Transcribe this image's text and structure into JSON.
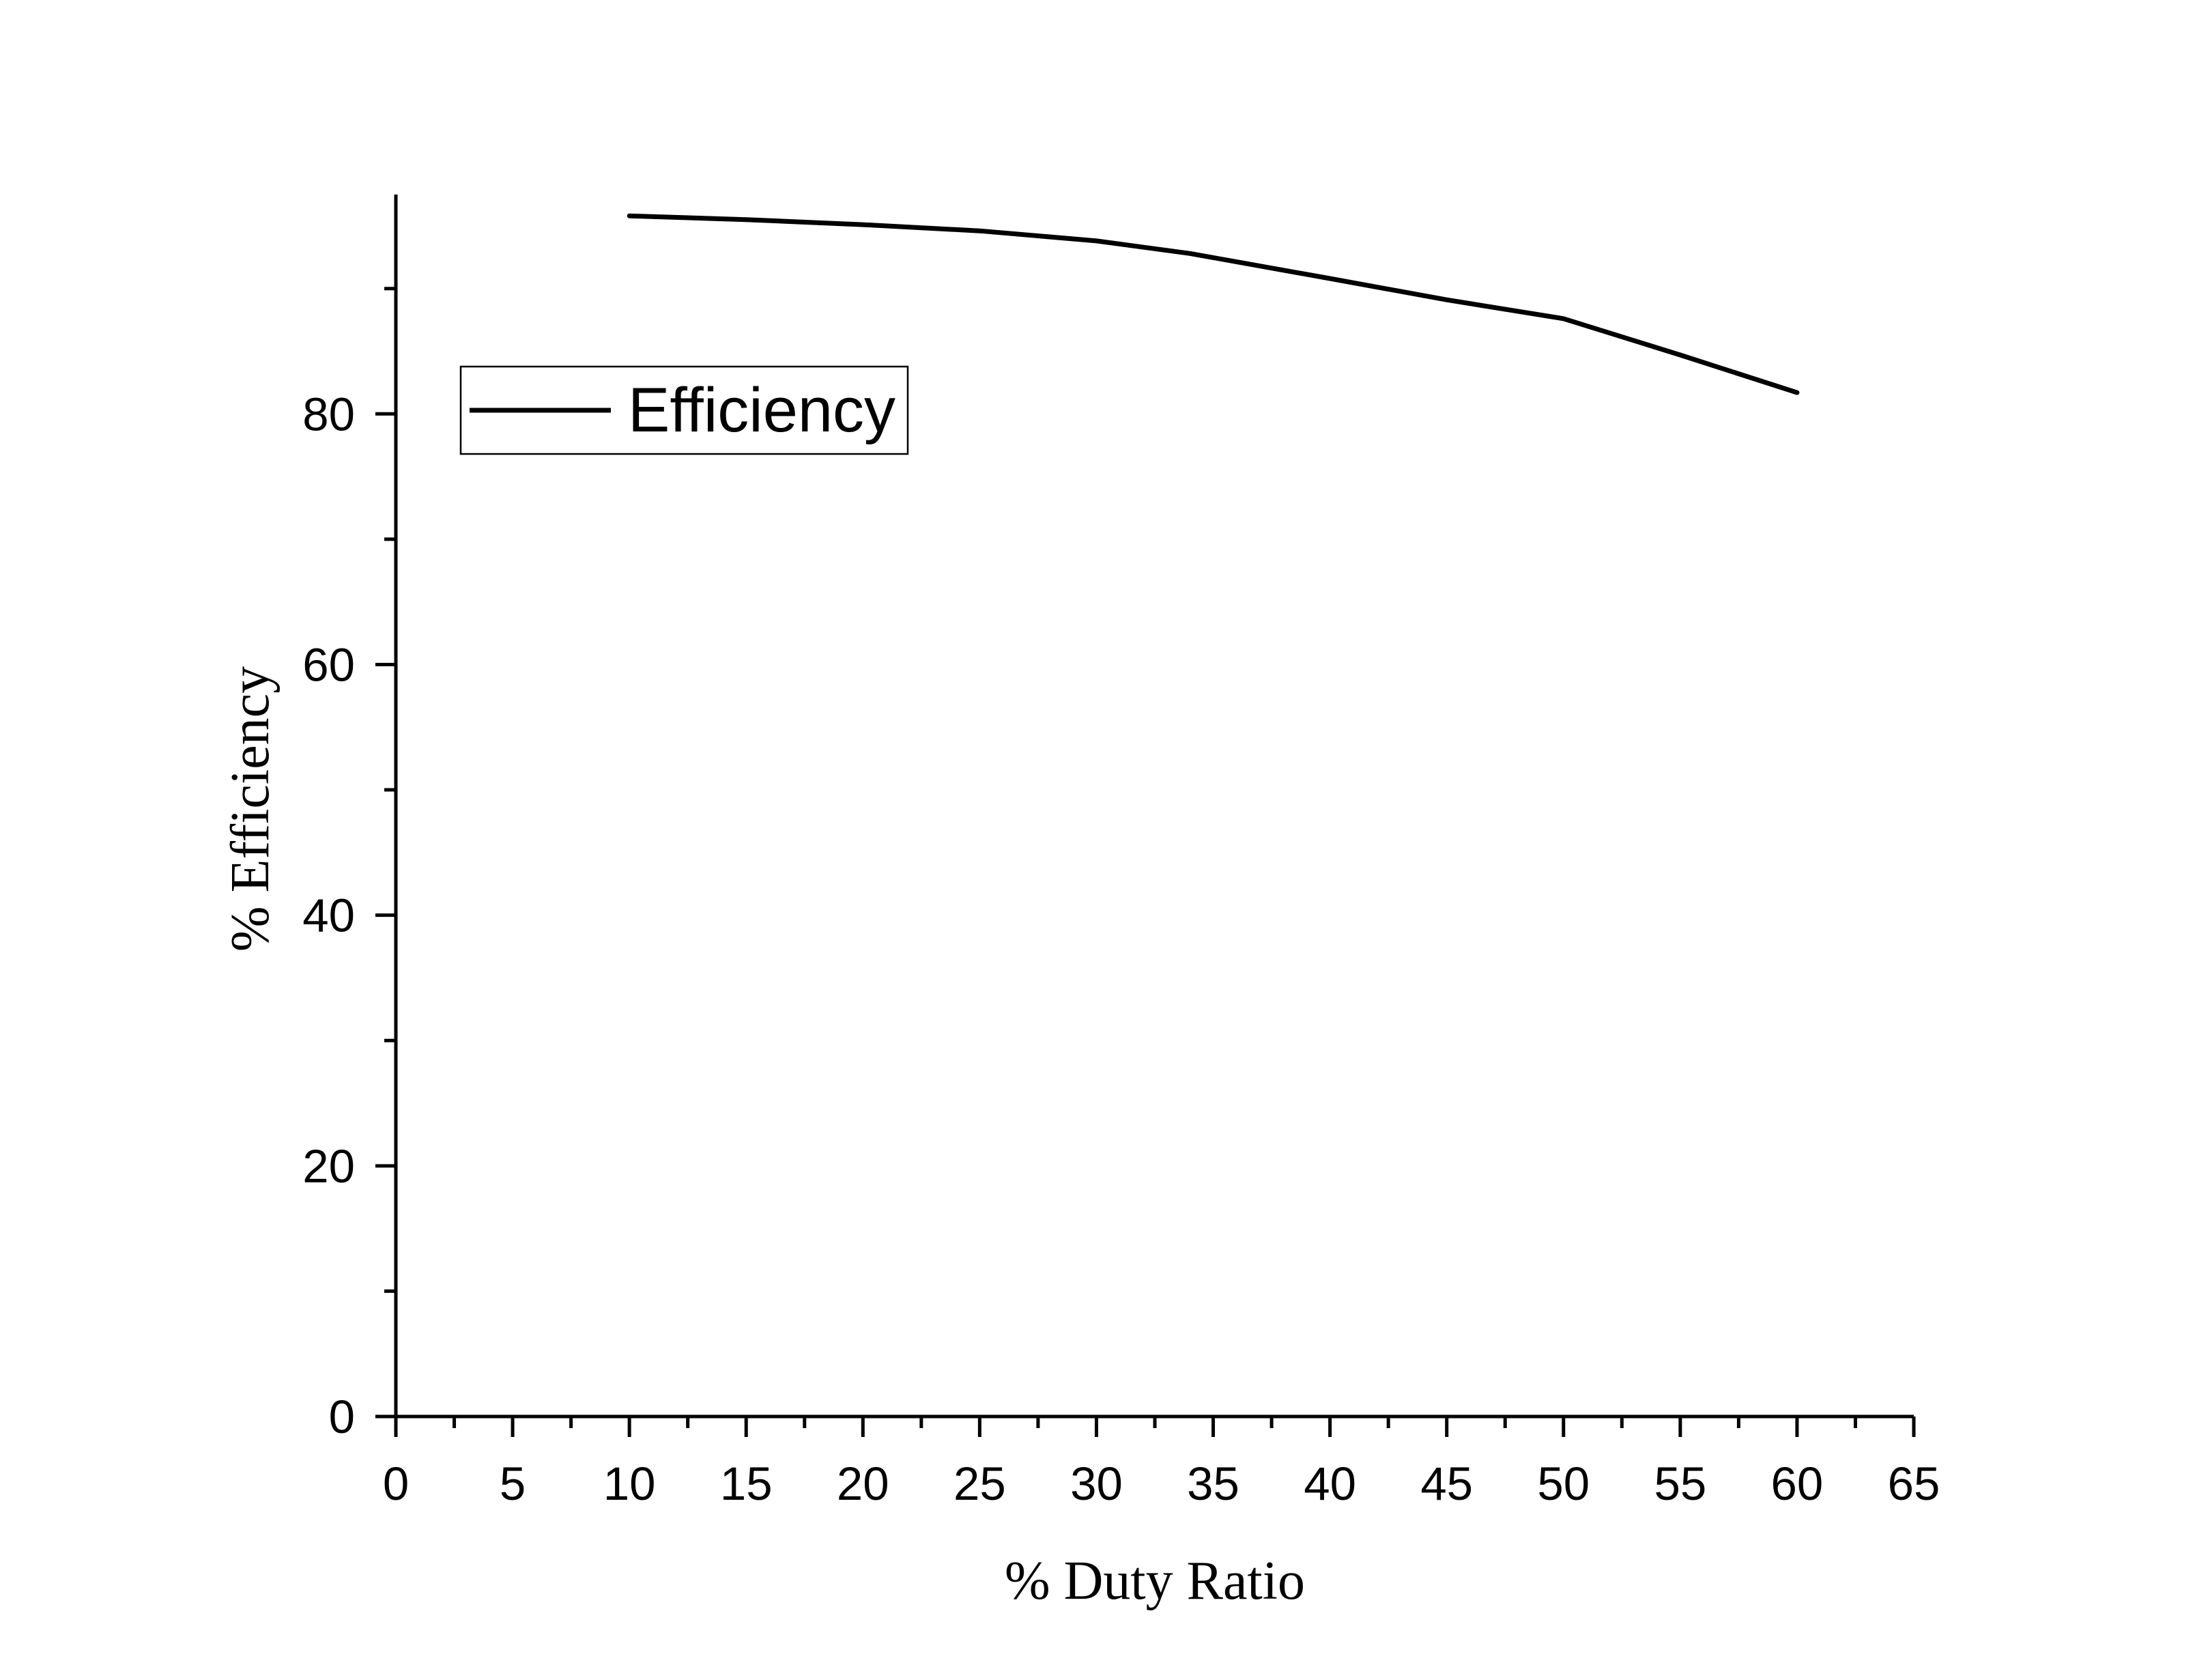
{
  "chart_data": {
    "type": "line",
    "title": "",
    "xlabel": "% Duty Ratio",
    "ylabel": "% Efficiency",
    "xlim": [
      0,
      65
    ],
    "ylim": [
      0,
      97.5
    ],
    "x_ticks": [
      0,
      5,
      10,
      15,
      20,
      25,
      30,
      35,
      40,
      45,
      50,
      55,
      60,
      65
    ],
    "y_ticks": [
      0,
      20,
      40,
      60,
      80
    ],
    "x_minor_step": 2.5,
    "y_minor_step": 10,
    "grid": false,
    "legend": {
      "position": "top-left",
      "entries": [
        "Efficiency"
      ]
    },
    "series": [
      {
        "name": "Efficiency",
        "color": "#000000",
        "x": [
          10,
          15,
          20,
          25,
          30,
          34,
          40,
          45,
          50,
          55,
          60
        ],
        "y": [
          95.8,
          95.5,
          95.1,
          94.6,
          93.8,
          92.8,
          90.8,
          89.1,
          87.6,
          84.7,
          81.7
        ]
      }
    ]
  }
}
